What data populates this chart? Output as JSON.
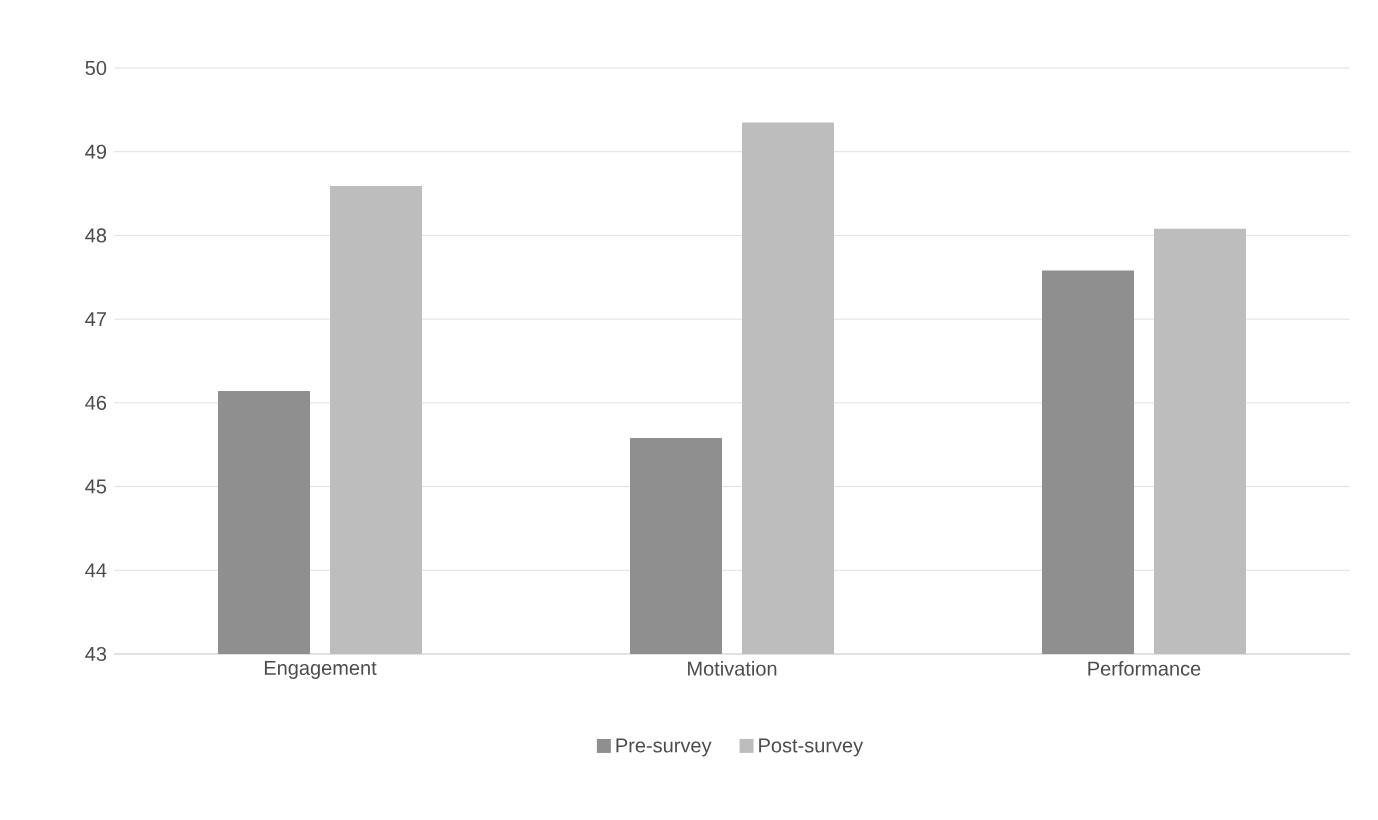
{
  "chart_data": {
    "type": "bar",
    "categories": [
      "Engagement",
      "Motivation",
      "Performance"
    ],
    "series": [
      {
        "name": "Pre-survey",
        "color": "#8f8f8f",
        "values": [
          46.14,
          45.58,
          47.58
        ]
      },
      {
        "name": "Post-survey",
        "color": "#bdbdbd",
        "values": [
          48.59,
          49.35,
          48.08
        ]
      }
    ],
    "ylim": [
      43,
      50
    ],
    "yticks": [
      43,
      44,
      45,
      46,
      47,
      48,
      49,
      50
    ],
    "grid": "y",
    "legend": "bottom"
  }
}
